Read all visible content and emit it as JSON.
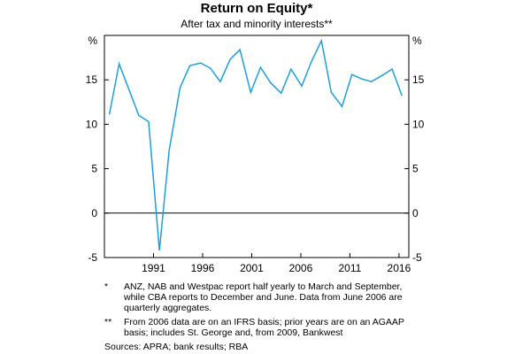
{
  "chart_data": {
    "type": "line",
    "title": "Return on Equity*",
    "subtitle": "After tax and minority interests**",
    "y_unit": "%",
    "x": [
      1986.5,
      1987.5,
      1989.5,
      1990.5,
      1991.6,
      1992.6,
      1993.7,
      1994.7,
      1995.8,
      1996.8,
      1997.8,
      1998.8,
      1999.8,
      2000.9,
      2001.9,
      2002.9,
      2004,
      2005,
      2006.1,
      2007.1,
      2008.1,
      2009.1,
      2010.2,
      2011.2,
      2012.2,
      2013.2,
      2014.3,
      2015.3,
      2016.3
    ],
    "series": [
      {
        "name": "Return on equity",
        "color": "#1e9fd8",
        "values": [
          11.1,
          16.8,
          11,
          10.3,
          -4.2,
          7.1,
          14.1,
          16.6,
          16.9,
          16.3,
          14.8,
          17.3,
          18.4,
          13.6,
          16.4,
          14.7,
          13.5,
          16.2,
          14.3,
          17.1,
          19.4,
          13.6,
          12,
          15.6,
          15.1,
          14.8,
          15.5,
          16.2,
          13.2
        ]
      }
    ],
    "xlim": [
      1986,
      2017
    ],
    "xticks": [
      1991,
      1996,
      2001,
      2006,
      2011,
      2016
    ],
    "ylim": [
      -5,
      20
    ],
    "yticks": [
      -5,
      0,
      5,
      10,
      15
    ]
  },
  "notes": [
    {
      "marker": "*",
      "text": "ANZ, NAB and Westpac report half yearly to March and September, while CBA reports to December and June. Data from June 2006 are quarterly aggregates."
    },
    {
      "marker": "**",
      "text": "From 2006 data are on an IFRS basis; prior years are on an AGAAP basis; includes St. George and, from 2009, Bankwest"
    }
  ],
  "sources": "Sources:   APRA; bank results; RBA"
}
